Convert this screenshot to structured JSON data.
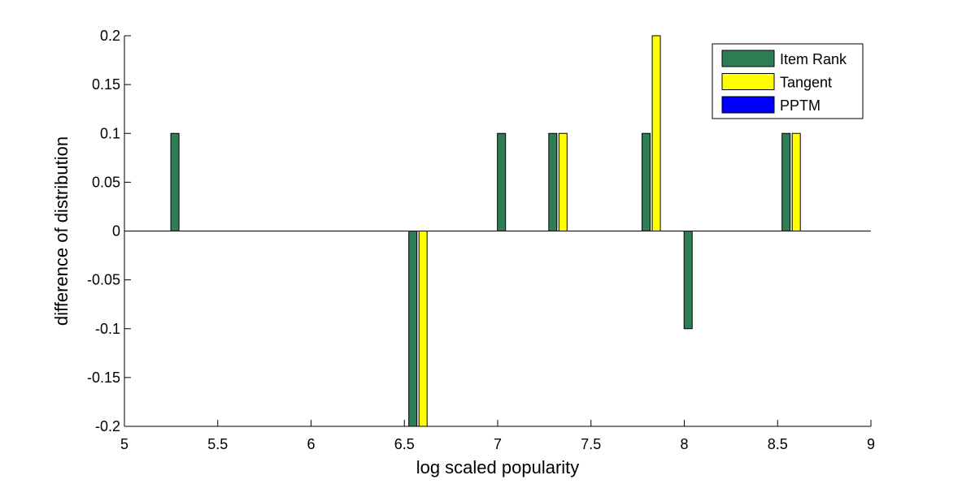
{
  "chart_data": {
    "type": "bar",
    "title": "",
    "xlabel": "log scaled popularity",
    "ylabel": "difference of distribution",
    "xlim": [
      5,
      9
    ],
    "ylim": [
      -0.2,
      0.2
    ],
    "xticks": [
      5,
      5.5,
      6,
      6.5,
      7,
      7.5,
      8,
      8.5,
      9
    ],
    "xtick_labels": [
      "5",
      "5.5",
      "6",
      "6.5",
      "7",
      "7.5",
      "8",
      "8.5",
      "9"
    ],
    "yticks": [
      -0.2,
      -0.15,
      -0.1,
      -0.05,
      0,
      0.05,
      0.1,
      0.15,
      0.2
    ],
    "ytick_labels": [
      "-0.2",
      "-0.15",
      "-0.1",
      "-0.05",
      "0",
      "0.05",
      "0.1",
      "0.15",
      "0.2"
    ],
    "grid": false,
    "legend_position": "top-right",
    "categories": [
      5.325,
      6.6,
      7.075,
      7.35,
      7.85,
      8.075,
      8.6
    ],
    "series": [
      {
        "name": "Item Rank",
        "color": "#2e7d55",
        "values": [
          0.1,
          -0.2,
          0.1,
          0.1,
          0.1,
          -0.1,
          0.1
        ]
      },
      {
        "name": "Tangent",
        "color": "#ffff00",
        "values": [
          0,
          -0.2,
          0,
          0.1,
          0.2,
          0,
          0.1
        ]
      },
      {
        "name": "PPTM",
        "color": "#0000ff",
        "values": [
          0,
          0,
          0,
          0,
          0,
          0,
          0
        ]
      }
    ]
  }
}
